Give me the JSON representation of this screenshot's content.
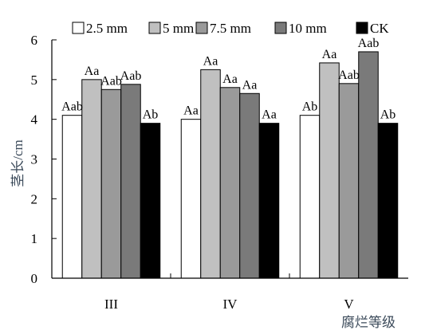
{
  "chart_data": {
    "type": "bar",
    "categories": [
      "III",
      "IV",
      "V"
    ],
    "xlabel": "腐烂等级",
    "ylabel": "茎长/cm",
    "ylim": [
      0,
      6
    ],
    "yticks": [
      "0",
      "1",
      "2",
      "3",
      "4",
      "5",
      "6"
    ],
    "grid": false,
    "legend_position": "top",
    "series": [
      {
        "name": "2.5 mm",
        "color": "#ffffff",
        "values": [
          4.1,
          4.0,
          4.1
        ],
        "labels": [
          "Aab",
          "Aa",
          "Ab"
        ]
      },
      {
        "name": "5 mm",
        "color": "#c0c0c0",
        "values": [
          5.0,
          5.25,
          5.42
        ],
        "labels": [
          "Aa",
          "Aa",
          "Aa"
        ]
      },
      {
        "name": "7.5 mm",
        "color": "#9a9a9a",
        "values": [
          4.75,
          4.8,
          4.9
        ],
        "labels": [
          "Aab",
          "Aa",
          "Aab"
        ]
      },
      {
        "name": "10 mm",
        "color": "#7a7a7a",
        "values": [
          4.88,
          4.65,
          5.7
        ],
        "labels": [
          "Aab",
          "Aa",
          "Aab"
        ]
      },
      {
        "name": "CK",
        "color": "#000000",
        "values": [
          3.9,
          3.9,
          3.9
        ],
        "labels": [
          "Ab",
          "Aa",
          "Ab"
        ]
      }
    ]
  }
}
